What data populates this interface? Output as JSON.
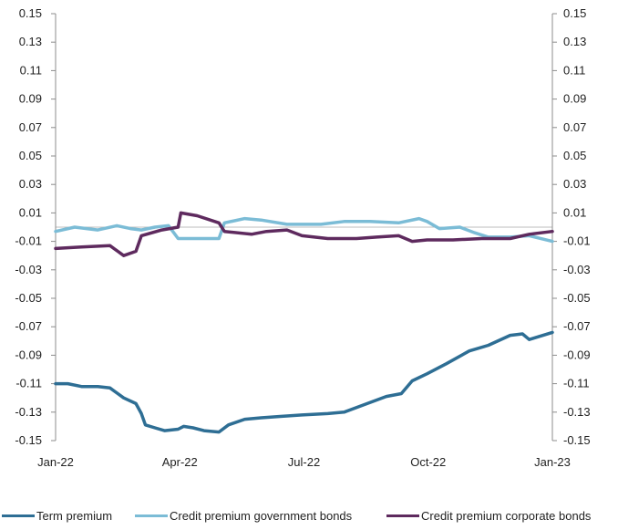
{
  "chart_data": {
    "type": "line",
    "title": "",
    "xlabel": "",
    "ylabel": "",
    "x_ticks": [
      "Jan-22",
      "Apr-22",
      "Jul-22",
      "Oct-22",
      "Jan-23"
    ],
    "y_ticks": [
      "0.15",
      "0.13",
      "0.11",
      "0.09",
      "0.07",
      "0.05",
      "0.03",
      "0.01",
      "-0.01",
      "-0.03",
      "-0.05",
      "-0.07",
      "-0.09",
      "-0.11",
      "-0.13",
      "-0.15"
    ],
    "ylim": [
      -0.15,
      0.15
    ],
    "xlim": [
      "2022-01-01",
      "2023-01-01"
    ],
    "secondary_axis": true,
    "grid": false,
    "zero_line": true,
    "legend_position": "bottom",
    "series": [
      {
        "name": "Term premium",
        "color": "#2e6e94",
        "points": [
          [
            "2022-01-01",
            -0.11
          ],
          [
            "2022-01-10",
            -0.11
          ],
          [
            "2022-01-20",
            -0.112
          ],
          [
            "2022-02-01",
            -0.112
          ],
          [
            "2022-02-10",
            -0.113
          ],
          [
            "2022-02-20",
            -0.12
          ],
          [
            "2022-03-01",
            -0.124
          ],
          [
            "2022-03-05",
            -0.131
          ],
          [
            "2022-03-08",
            -0.139
          ],
          [
            "2022-03-15",
            -0.141
          ],
          [
            "2022-03-22",
            -0.143
          ],
          [
            "2022-04-01",
            -0.142
          ],
          [
            "2022-04-05",
            -0.14
          ],
          [
            "2022-04-12",
            -0.141
          ],
          [
            "2022-04-20",
            -0.143
          ],
          [
            "2022-05-01",
            -0.144
          ],
          [
            "2022-05-08",
            -0.139
          ],
          [
            "2022-05-20",
            -0.135
          ],
          [
            "2022-06-01",
            -0.134
          ],
          [
            "2022-06-15",
            -0.133
          ],
          [
            "2022-07-01",
            -0.132
          ],
          [
            "2022-07-20",
            -0.131
          ],
          [
            "2022-08-01",
            -0.13
          ],
          [
            "2022-08-15",
            -0.125
          ],
          [
            "2022-09-01",
            -0.119
          ],
          [
            "2022-09-12",
            -0.117
          ],
          [
            "2022-09-20",
            -0.108
          ],
          [
            "2022-10-01",
            -0.103
          ],
          [
            "2022-10-15",
            -0.096
          ],
          [
            "2022-11-01",
            -0.087
          ],
          [
            "2022-11-15",
            -0.083
          ],
          [
            "2022-12-01",
            -0.076
          ],
          [
            "2022-12-10",
            -0.075
          ],
          [
            "2022-12-15",
            -0.079
          ],
          [
            "2023-01-01",
            -0.074
          ]
        ]
      },
      {
        "name": "Credit premium government bonds",
        "color": "#7bbcd6",
        "points": [
          [
            "2022-01-01",
            -0.003
          ],
          [
            "2022-01-15",
            0.0
          ],
          [
            "2022-02-01",
            -0.002
          ],
          [
            "2022-02-15",
            0.001
          ],
          [
            "2022-02-25",
            -0.001
          ],
          [
            "2022-03-05",
            -0.002
          ],
          [
            "2022-03-15",
            0.0
          ],
          [
            "2022-03-25",
            0.001
          ],
          [
            "2022-04-01",
            -0.008
          ],
          [
            "2022-04-20",
            -0.008
          ],
          [
            "2022-05-01",
            -0.008
          ],
          [
            "2022-05-05",
            0.003
          ],
          [
            "2022-05-20",
            0.006
          ],
          [
            "2022-06-01",
            0.005
          ],
          [
            "2022-06-20",
            0.002
          ],
          [
            "2022-07-15",
            0.002
          ],
          [
            "2022-08-01",
            0.004
          ],
          [
            "2022-08-20",
            0.004
          ],
          [
            "2022-09-10",
            0.003
          ],
          [
            "2022-09-25",
            0.006
          ],
          [
            "2022-10-01",
            0.004
          ],
          [
            "2022-10-10",
            -0.001
          ],
          [
            "2022-10-25",
            0.0
          ],
          [
            "2022-11-05",
            -0.004
          ],
          [
            "2022-11-15",
            -0.007
          ],
          [
            "2022-12-01",
            -0.007
          ],
          [
            "2022-12-15",
            -0.006
          ],
          [
            "2023-01-01",
            -0.01
          ]
        ]
      },
      {
        "name": "Credit premium corporate bonds",
        "color": "#5e2a5e",
        "points": [
          [
            "2022-01-01",
            -0.015
          ],
          [
            "2022-01-20",
            -0.014
          ],
          [
            "2022-02-10",
            -0.013
          ],
          [
            "2022-02-20",
            -0.02
          ],
          [
            "2022-03-01",
            -0.017
          ],
          [
            "2022-03-05",
            -0.006
          ],
          [
            "2022-03-20",
            -0.002
          ],
          [
            "2022-04-01",
            0.0
          ],
          [
            "2022-04-03",
            0.01
          ],
          [
            "2022-04-15",
            0.008
          ],
          [
            "2022-05-01",
            0.003
          ],
          [
            "2022-05-05",
            -0.003
          ],
          [
            "2022-05-25",
            -0.005
          ],
          [
            "2022-06-05",
            -0.003
          ],
          [
            "2022-06-20",
            -0.002
          ],
          [
            "2022-07-01",
            -0.006
          ],
          [
            "2022-07-20",
            -0.008
          ],
          [
            "2022-08-10",
            -0.008
          ],
          [
            "2022-08-25",
            -0.007
          ],
          [
            "2022-09-10",
            -0.006
          ],
          [
            "2022-09-20",
            -0.01
          ],
          [
            "2022-10-01",
            -0.009
          ],
          [
            "2022-10-20",
            -0.009
          ],
          [
            "2022-11-10",
            -0.008
          ],
          [
            "2022-12-01",
            -0.008
          ],
          [
            "2022-12-15",
            -0.005
          ],
          [
            "2023-01-01",
            -0.003
          ]
        ]
      }
    ]
  },
  "legend": {
    "items": [
      {
        "label": "Term premium",
        "color": "#2e6e94"
      },
      {
        "label": "Credit premium government bonds",
        "color": "#7bbcd6"
      },
      {
        "label": "Credit premium corporate bonds",
        "color": "#5e2a5e"
      }
    ]
  }
}
